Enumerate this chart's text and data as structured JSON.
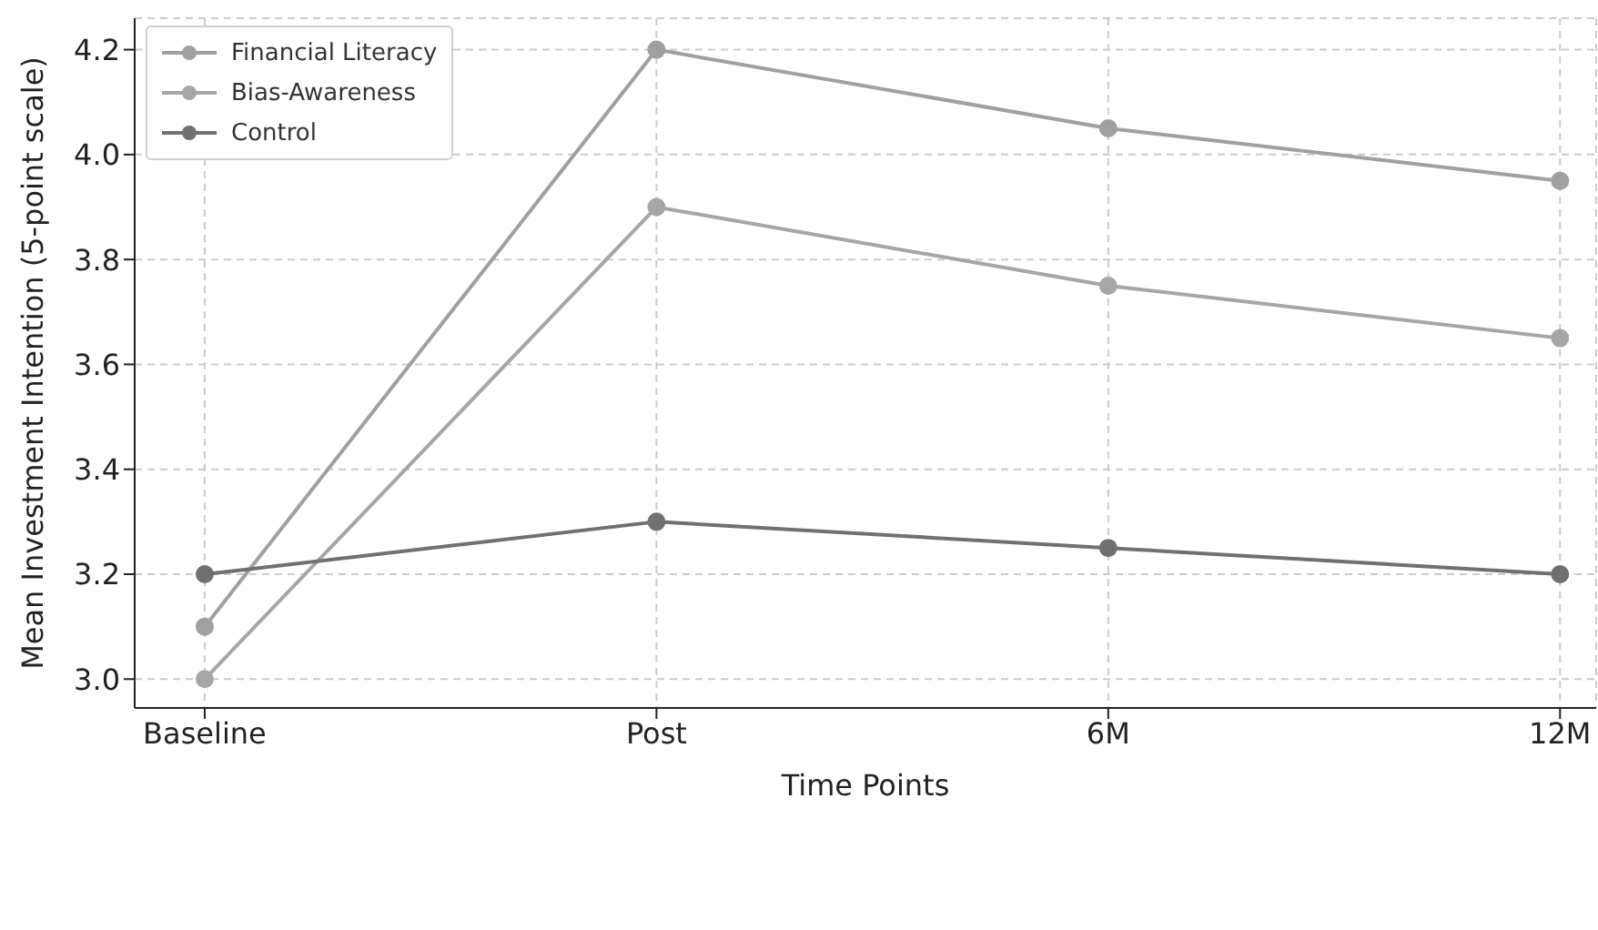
{
  "chart_data": {
    "type": "line",
    "xlabel": "Time Points",
    "ylabel": "Mean Investment Intention (5-point scale)",
    "categories": [
      "Baseline",
      "Post",
      "6M",
      "12M"
    ],
    "series": [
      {
        "name": "Financial Literacy",
        "color": "#a0a0a0",
        "values": [
          3.1,
          4.2,
          4.05,
          3.95
        ]
      },
      {
        "name": "Bias-Awareness",
        "color": "#a6a6a6",
        "values": [
          3.0,
          3.9,
          3.75,
          3.65
        ]
      },
      {
        "name": "Control",
        "color": "#707070",
        "values": [
          3.2,
          3.3,
          3.25,
          3.2
        ]
      }
    ],
    "ylim": [
      2.945,
      4.26
    ],
    "yticks": [
      {
        "value": 3,
        "label": "3.0"
      },
      3.2,
      3.4,
      3.6,
      3.8,
      {
        "value": 4,
        "label": "4.0"
      },
      4.2
    ],
    "grid": true,
    "legend": "top left",
    "marker": "circle",
    "line_style": "solid"
  }
}
